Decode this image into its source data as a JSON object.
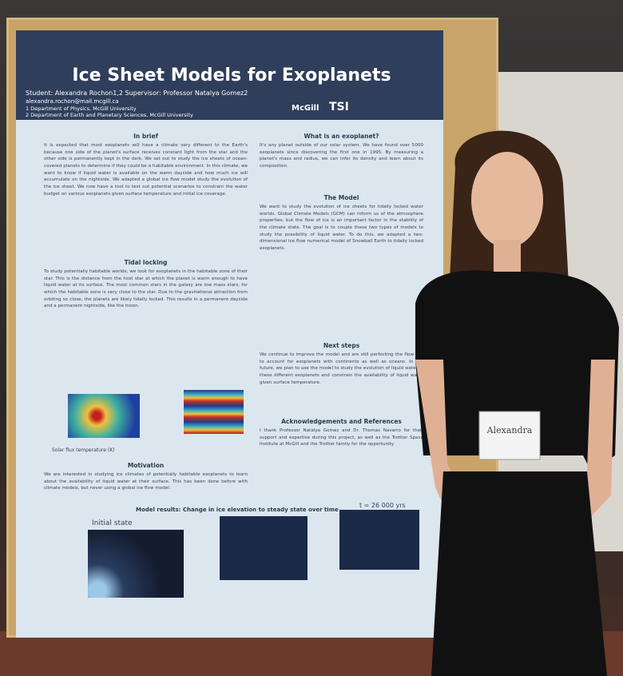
{
  "poster": {
    "title": "Ice Sheet Models for Exoplanets",
    "author_line": "Student: Alexandra Rochon1,2 Supervisor: Professor Natalya Gomez2",
    "email": "alexandra.rochon@mail.mcgill.ca",
    "affiliations": [
      "1 Department of Physics, McGill University",
      "2 Department of Earth and Planetary Sciences, McGill University"
    ],
    "logos": [
      "McGill",
      "TSI"
    ],
    "sections": [
      {
        "heading": "In brief",
        "text": "It is expected that most exoplanets will have a climate very different to the Earth's because one side of the planet's surface receives constant light from the star and the other side is permanently kept in the dark. We set out to study the ice sheets of ocean-covered planets to determine if they could be a habitable environment. In this climate, we want to know if liquid water is available on the warm dayside and how much ice will accumulate on the nightside. We adapted a global ice flow model study the evolution of the ice sheet. We now have a tool to test out potential scenarios to constrain the water budget on various exoplanets given surface temperature and initial ice coverage."
      },
      {
        "heading": "Tidal locking",
        "text": "To study potentially habitable worlds, we look for exoplanets in the habitable zone of their star. This is the distance from the host star at which the planet is warm enough to have liquid water at its surface. The most common stars in the galaxy are low mass stars, for which the habitable zone is very close to the star. Due to the gravitational attraction from orbiting so close, the planets are likely tidally locked. This results in a permanent dayside and a permanent nightside, like the moon."
      },
      {
        "heading": "Motivation",
        "text": "We are interested in studying ice climates of potentially habitable exoplanets to learn about the availability of liquid water at their surface. This has been done before with climate models, but never using a global ice flow model."
      },
      {
        "heading": "What is an exoplanet?",
        "text": "It's any planet outside of our solar system. We have found over 5000 exoplanets since discovering the first one in 1995. By measuring a planet's mass and radius, we can infer its density and learn about its composition."
      },
      {
        "heading": "The Model",
        "text": "We want to study the evolution of ice sheets for tidally locked water worlds. Global Climate Models (GCM) can inform us of the atmosphere properties, but the flow of ice is an important factor in the stability of the climate state. The goal is to couple these two types of models to study the possibility of liquid water. To do this, we adapted a two-dimensional ice flow numerical model of Snowball Earth to tidally locked exoplanets."
      },
      {
        "heading": "Next steps",
        "text": "We continue to improve the model and are still perfecting the flow law to account for exoplanets with continents as well as oceans. In the future, we plan to use the model to study the evolution of liquid water in these different exoplanets and constrain the availability of liquid water given surface temperature."
      },
      {
        "heading": "Acknowledgements and References",
        "text": "I thank Professor Natalya Gomez and Dr. Thomas Navarro for their support and expertise during this project, as well as the Trottier Space Institute at McGill and the Trottier family for the opportunity."
      }
    ],
    "results_heading": "Model results: Change in ice elevation to steady state over time",
    "panel_labels": [
      "Initial state",
      "t = 26 000 yrs"
    ],
    "axis_label": "Solar flux temperature (K)"
  },
  "badge": {
    "name": "Alexandra"
  }
}
